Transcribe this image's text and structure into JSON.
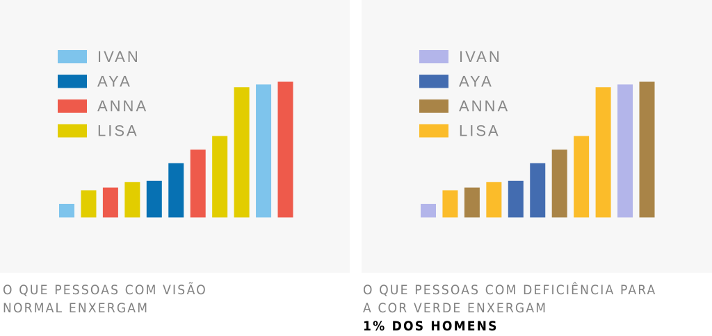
{
  "chart_data": [
    {
      "type": "bar",
      "legend": [
        "IVAN",
        "AYA",
        "ANNA",
        "LISA"
      ],
      "colors": {
        "IVAN": "#7ec4ec",
        "AYA": "#0771b3",
        "ANNA": "#ee5a4b",
        "LISA": "#e2cd00"
      },
      "bars": [
        {
          "series": "IVAN",
          "value": 10
        },
        {
          "series": "LISA",
          "value": 20
        },
        {
          "series": "ANNA",
          "value": 22
        },
        {
          "series": "LISA",
          "value": 26
        },
        {
          "series": "AYA",
          "value": 27
        },
        {
          "series": "AYA",
          "value": 40
        },
        {
          "series": "ANNA",
          "value": 50
        },
        {
          "series": "LISA",
          "value": 60
        },
        {
          "series": "LISA",
          "value": 96
        },
        {
          "series": "IVAN",
          "value": 98
        },
        {
          "series": "ANNA",
          "value": 100
        }
      ],
      "ylim": [
        0,
        100
      ],
      "grid": false,
      "legend_position": "top-left",
      "caption": [
        "O QUE PESSOAS COM VISÃO",
        "NORMAL ENXERGAM"
      ]
    },
    {
      "type": "bar",
      "legend": [
        "IVAN",
        "AYA",
        "ANNA",
        "LISA"
      ],
      "colors": {
        "IVAN": "#b3b5ea",
        "AYA": "#436cb0",
        "ANNA": "#a98447",
        "LISA": "#fbbc2a"
      },
      "bars": [
        {
          "series": "IVAN",
          "value": 10
        },
        {
          "series": "LISA",
          "value": 20
        },
        {
          "series": "ANNA",
          "value": 22
        },
        {
          "series": "LISA",
          "value": 26
        },
        {
          "series": "AYA",
          "value": 27
        },
        {
          "series": "AYA",
          "value": 40
        },
        {
          "series": "ANNA",
          "value": 50
        },
        {
          "series": "LISA",
          "value": 60
        },
        {
          "series": "LISA",
          "value": 96
        },
        {
          "series": "IVAN",
          "value": 98
        },
        {
          "series": "ANNA",
          "value": 100
        }
      ],
      "ylim": [
        0,
        100
      ],
      "grid": false,
      "legend_position": "top-left",
      "caption": [
        "O QUE PESSOAS COM DEFICIÊNCIA PARA",
        "A COR VERDE ENXERGAM"
      ],
      "caption_strong": "1% DOS HOMENS"
    }
  ]
}
